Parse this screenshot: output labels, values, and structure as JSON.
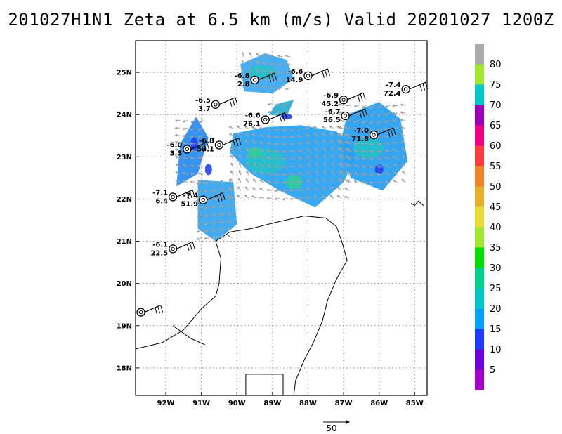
{
  "title": "201027H1N1 Zeta at 6.5 km (m/s) Valid 20201027 1200Z",
  "map": {
    "lon_range": [
      -92.85,
      -84.65
    ],
    "lat_range": [
      17.35,
      25.75
    ],
    "lat_labels": [
      {
        "lat": 25,
        "text": "25N"
      },
      {
        "lat": 24,
        "text": "24N"
      },
      {
        "lat": 23,
        "text": "23N"
      },
      {
        "lat": 22,
        "text": "22N"
      },
      {
        "lat": 21,
        "text": "21N"
      },
      {
        "lat": 20,
        "text": "20N"
      },
      {
        "lat": 19,
        "text": "19N"
      },
      {
        "lat": 18,
        "text": "18N"
      }
    ],
    "lon_labels": [
      {
        "lon": -92,
        "text": "92W"
      },
      {
        "lon": -91,
        "text": "91W"
      },
      {
        "lon": -90,
        "text": "90W"
      },
      {
        "lon": -89,
        "text": "89W"
      },
      {
        "lon": -88,
        "text": "88W"
      },
      {
        "lon": -87,
        "text": "87W"
      },
      {
        "lon": -86,
        "text": "86W"
      },
      {
        "lon": -85,
        "text": "85W"
      }
    ],
    "grid": true
  },
  "colorbar": {
    "levels": [
      "5",
      "10",
      "15",
      "20",
      "25",
      "30",
      "35",
      "40",
      "45",
      "50",
      "55",
      "60",
      "65",
      "70",
      "75",
      "80"
    ],
    "colors": [
      "#a000c8",
      "#6e00dc",
      "#1e3cff",
      "#00a0ff",
      "#00c8c8",
      "#00d28c",
      "#00dc00",
      "#a0e632",
      "#e6dc32",
      "#e6af2d",
      "#f08228",
      "#fa3c3c",
      "#f00082",
      "#9b00b4",
      "#00c8c8",
      "#a0e632",
      "#aaaaaa"
    ]
  },
  "reference_vector": {
    "label": "50"
  },
  "storms": [
    {
      "lon": -89.5,
      "lat": 24.82,
      "t1": "-6.8",
      "t2": "2.8"
    },
    {
      "lon": -88.0,
      "lat": 24.92,
      "t1": "-6.6",
      "t2": "14.9"
    },
    {
      "lon": -85.25,
      "lat": 24.6,
      "t1": "-7.4",
      "t2": "72.4"
    },
    {
      "lon": -90.6,
      "lat": 24.24,
      "t1": "-6.5",
      "t2": "3.7"
    },
    {
      "lon": -89.2,
      "lat": 23.88,
      "t1": "-6.6",
      "t2": "76.1"
    },
    {
      "lon": -87.0,
      "lat": 24.35,
      "t1": "-6.9",
      "t2": "45.2"
    },
    {
      "lon": -86.95,
      "lat": 23.97,
      "t1": "-6.7",
      "t2": "56.5"
    },
    {
      "lon": -86.15,
      "lat": 23.52,
      "t1": "-7.0",
      "t2": "71.8"
    },
    {
      "lon": -91.4,
      "lat": 23.18,
      "t1": "-6.0",
      "t2": "3.3"
    },
    {
      "lon": -90.5,
      "lat": 23.28,
      "t1": "-6.8",
      "t2": "53.1"
    },
    {
      "lon": -91.8,
      "lat": 22.05,
      "t1": "-7.1",
      "t2": "6.4"
    },
    {
      "lon": -90.95,
      "lat": 21.98,
      "t1": "-7.4",
      "t2": "51.9"
    },
    {
      "lon": -91.8,
      "lat": 20.82,
      "t1": "-6.1",
      "t2": "22.5"
    },
    {
      "lon": -92.7,
      "lat": 19.32,
      "t1": "",
      "t2": ""
    }
  ]
}
